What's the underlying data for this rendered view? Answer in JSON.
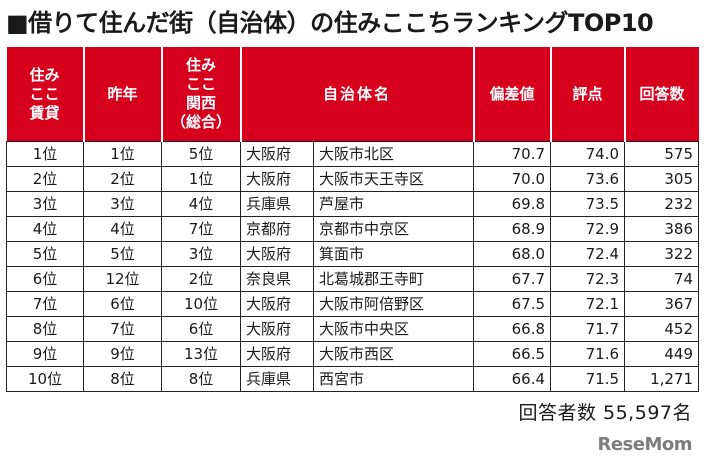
{
  "title": "■借りて住んだ街（自治体）の住みここちランキングTOP10",
  "table": {
    "headers": {
      "rank_rent": [
        "住み",
        "ここ",
        "賃貸"
      ],
      "prev_year": [
        "昨年"
      ],
      "rank_kansai": [
        "住み",
        "ここ",
        "関西",
        "（総合）"
      ],
      "municipality": [
        "自治体名"
      ],
      "deviation": [
        "偏差値"
      ],
      "score": [
        "評点"
      ],
      "responses": [
        "回答数"
      ]
    },
    "rows": [
      {
        "rank": "1位",
        "prev": "1位",
        "kansai": "5位",
        "pref": "大阪府",
        "city": "大阪市北区",
        "deviation": "70.7",
        "score": "74.0",
        "responses": "575"
      },
      {
        "rank": "2位",
        "prev": "2位",
        "kansai": "1位",
        "pref": "大阪府",
        "city": "大阪市天王寺区",
        "deviation": "70.0",
        "score": "73.6",
        "responses": "305"
      },
      {
        "rank": "3位",
        "prev": "3位",
        "kansai": "4位",
        "pref": "兵庫県",
        "city": "芦屋市",
        "deviation": "69.8",
        "score": "73.5",
        "responses": "232"
      },
      {
        "rank": "4位",
        "prev": "4位",
        "kansai": "7位",
        "pref": "京都府",
        "city": "京都市中京区",
        "deviation": "68.9",
        "score": "72.9",
        "responses": "386"
      },
      {
        "rank": "5位",
        "prev": "5位",
        "kansai": "3位",
        "pref": "大阪府",
        "city": "箕面市",
        "deviation": "68.0",
        "score": "72.4",
        "responses": "322"
      },
      {
        "rank": "6位",
        "prev": "12位",
        "kansai": "2位",
        "pref": "奈良県",
        "city": "北葛城郡王寺町",
        "deviation": "67.7",
        "score": "72.3",
        "responses": "74"
      },
      {
        "rank": "7位",
        "prev": "6位",
        "kansai": "10位",
        "pref": "大阪府",
        "city": "大阪市阿倍野区",
        "deviation": "67.5",
        "score": "72.1",
        "responses": "367"
      },
      {
        "rank": "8位",
        "prev": "7位",
        "kansai": "6位",
        "pref": "大阪府",
        "city": "大阪市中央区",
        "deviation": "66.8",
        "score": "71.7",
        "responses": "452"
      },
      {
        "rank": "9位",
        "prev": "9位",
        "kansai": "13位",
        "pref": "大阪府",
        "city": "大阪市西区",
        "deviation": "66.5",
        "score": "71.6",
        "responses": "449"
      },
      {
        "rank": "10位",
        "prev": "8位",
        "kansai": "8位",
        "pref": "兵庫県",
        "city": "西宮市",
        "deviation": "66.4",
        "score": "71.5",
        "responses": "1,271"
      }
    ]
  },
  "respondents": "回答者数 55,597名",
  "logo": "ReseMom",
  "colors": {
    "header_bg": "#d6001c",
    "header_text": "#ffffff",
    "border": "#222222"
  }
}
